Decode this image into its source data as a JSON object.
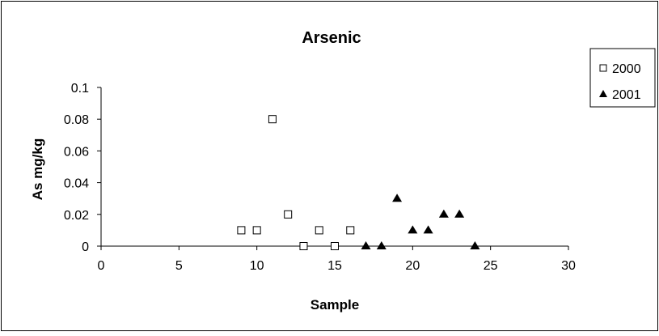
{
  "chart_data": {
    "type": "scatter",
    "title": "Arsenic",
    "xlabel": "Sample",
    "ylabel": "As mg/kg",
    "xlim": [
      0,
      30
    ],
    "ylim": [
      0,
      0.1
    ],
    "x_ticks": [
      "0",
      "5",
      "10",
      "15",
      "20",
      "25",
      "30"
    ],
    "y_ticks": [
      "0",
      "0.02",
      "0.04",
      "0.06",
      "0.08",
      "0.1"
    ],
    "grid": false,
    "legend_position": "top-right",
    "series": [
      {
        "name": "2000",
        "marker": "open-square",
        "color": "#000000",
        "points": [
          {
            "x": 9,
            "y": 0.01
          },
          {
            "x": 10,
            "y": 0.01
          },
          {
            "x": 11,
            "y": 0.08
          },
          {
            "x": 12,
            "y": 0.02
          },
          {
            "x": 13,
            "y": 0.0
          },
          {
            "x": 14,
            "y": 0.01
          },
          {
            "x": 15,
            "y": 0.0
          },
          {
            "x": 16,
            "y": 0.01
          }
        ]
      },
      {
        "name": "2001",
        "marker": "filled-triangle",
        "color": "#000000",
        "points": [
          {
            "x": 17,
            "y": 0.0
          },
          {
            "x": 18,
            "y": 0.0
          },
          {
            "x": 19,
            "y": 0.03
          },
          {
            "x": 20,
            "y": 0.01
          },
          {
            "x": 21,
            "y": 0.01
          },
          {
            "x": 22,
            "y": 0.02
          },
          {
            "x": 23,
            "y": 0.02
          },
          {
            "x": 24,
            "y": 0.0
          }
        ]
      }
    ]
  }
}
